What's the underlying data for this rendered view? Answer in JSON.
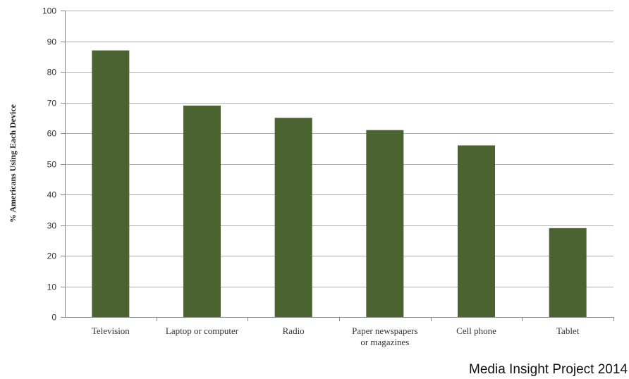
{
  "chart_data": {
    "type": "bar",
    "categories": [
      [
        "Television"
      ],
      [
        "Laptop or computer"
      ],
      [
        "Radio"
      ],
      [
        "Paper newspapers",
        "or magazines"
      ],
      [
        "Cell phone"
      ],
      [
        "Tablet"
      ]
    ],
    "values": [
      87,
      69,
      65,
      61,
      56,
      29
    ],
    "ylabel": "% Americans Using Each Device",
    "xlabel": "",
    "ylim": [
      0,
      100
    ],
    "yticks": [
      0,
      10,
      20,
      30,
      40,
      50,
      60,
      70,
      80,
      90,
      100
    ],
    "grid": true,
    "legend": "none",
    "bar_color": "#4b6330",
    "grid_color": "#b0b0b0"
  },
  "source_note": "Media Insight Project 2014"
}
